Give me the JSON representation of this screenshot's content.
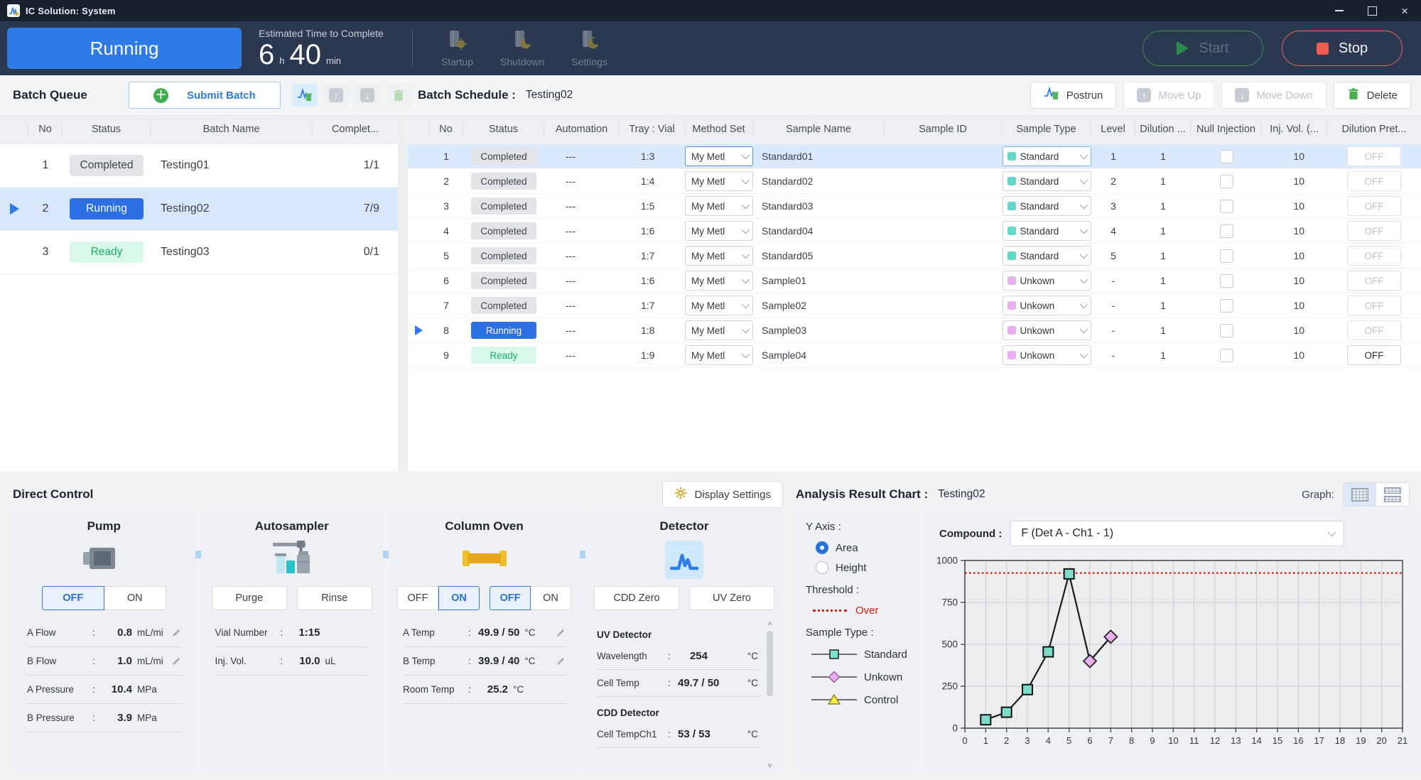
{
  "window": {
    "title": "IC Solution: System",
    "controls": {
      "minimize": "minimize",
      "maximize": "maximize",
      "close": "close"
    }
  },
  "header": {
    "status_label": "Running",
    "eta": {
      "label": "Estimated Time to Complete",
      "hours": "6",
      "hours_unit": "h",
      "minutes": "40",
      "minutes_unit": "min"
    },
    "nav_buttons": [
      {
        "label": "Startup",
        "icon": "startup-sun-icon"
      },
      {
        "label": "Shutdown",
        "icon": "shutdown-moon-icon"
      },
      {
        "label": "Settings",
        "icon": "settings-moon-icon"
      }
    ],
    "start_label": "Start",
    "stop_label": "Stop"
  },
  "batch_queue": {
    "title": "Batch Queue",
    "submit_button": "Submit Batch",
    "columns": [
      "No",
      "Status",
      "Batch Name",
      "Complet..."
    ],
    "rows": [
      {
        "no": "1",
        "status": "Completed",
        "batch_name": "Testing01",
        "completed": "1/1",
        "current": false,
        "selected": false
      },
      {
        "no": "2",
        "status": "Running",
        "batch_name": "Testing02",
        "completed": "7/9",
        "current": true,
        "selected": true
      },
      {
        "no": "3",
        "status": "Ready",
        "batch_name": "Testing03",
        "completed": "0/1",
        "current": false,
        "selected": false
      }
    ]
  },
  "batch_schedule": {
    "title": "Batch Schedule :",
    "schedule_name": "Testing02",
    "toolbar": [
      {
        "label": "Postrun",
        "enabled": true,
        "icon": "postrun-chromatogram-icon"
      },
      {
        "label": "Move Up",
        "enabled": false,
        "icon": "move-up-icon"
      },
      {
        "label": "Move Down",
        "enabled": false,
        "icon": "move-down-icon"
      },
      {
        "label": "Delete",
        "enabled": true,
        "icon": "delete-trash-icon"
      }
    ],
    "columns": [
      "No",
      "Status",
      "Automation",
      "Tray : Vial",
      "Method Set",
      "Sample Name",
      "Sample ID",
      "Sample Type",
      "Level",
      "Dilution ...",
      "Null Injection",
      "Inj. Vol. (...",
      "Dilution Pret..."
    ],
    "rows": [
      {
        "no": "1",
        "status": "Completed",
        "automation": "---",
        "tray_vial": "1:3",
        "method_set": "My Metl",
        "sample_name": "Standard01",
        "sample_id": "",
        "sample_type": "Standard",
        "level": "1",
        "dilution": "1",
        "null_injection": false,
        "inj_vol": "10",
        "dilution_pret": "OFF",
        "current": false,
        "selected": true,
        "pret_enabled": false
      },
      {
        "no": "2",
        "status": "Completed",
        "automation": "---",
        "tray_vial": "1:4",
        "method_set": "My Metl",
        "sample_name": "Standard02",
        "sample_id": "",
        "sample_type": "Standard",
        "level": "2",
        "dilution": "1",
        "null_injection": false,
        "inj_vol": "10",
        "dilution_pret": "OFF",
        "current": false,
        "selected": false,
        "pret_enabled": false
      },
      {
        "no": "3",
        "status": "Completed",
        "automation": "---",
        "tray_vial": "1:5",
        "method_set": "My Metl",
        "sample_name": "Standard03",
        "sample_id": "",
        "sample_type": "Standard",
        "level": "3",
        "dilution": "1",
        "null_injection": false,
        "inj_vol": "10",
        "dilution_pret": "OFF",
        "current": false,
        "selected": false,
        "pret_enabled": false
      },
      {
        "no": "4",
        "status": "Completed",
        "automation": "---",
        "tray_vial": "1:6",
        "method_set": "My Metl",
        "sample_name": "Standard04",
        "sample_id": "",
        "sample_type": "Standard",
        "level": "4",
        "dilution": "1",
        "null_injection": false,
        "inj_vol": "10",
        "dilution_pret": "OFF",
        "current": false,
        "selected": false,
        "pret_enabled": false
      },
      {
        "no": "5",
        "status": "Completed",
        "automation": "---",
        "tray_vial": "1:7",
        "method_set": "My Metl",
        "sample_name": "Standard05",
        "sample_id": "",
        "sample_type": "Standard",
        "level": "5",
        "dilution": "1",
        "null_injection": false,
        "inj_vol": "10",
        "dilution_pret": "OFF",
        "current": false,
        "selected": false,
        "pret_enabled": false
      },
      {
        "no": "6",
        "status": "Completed",
        "automation": "---",
        "tray_vial": "1:6",
        "method_set": "My Metl",
        "sample_name": "Sample01",
        "sample_id": "",
        "sample_type": "Unkown",
        "level": "-",
        "dilution": "1",
        "null_injection": false,
        "inj_vol": "10",
        "dilution_pret": "OFF",
        "current": false,
        "selected": false,
        "pret_enabled": false
      },
      {
        "no": "7",
        "status": "Completed",
        "automation": "---",
        "tray_vial": "1:7",
        "method_set": "My Metl",
        "sample_name": "Sample02",
        "sample_id": "",
        "sample_type": "Unkown",
        "level": "-",
        "dilution": "1",
        "null_injection": false,
        "inj_vol": "10",
        "dilution_pret": "OFF",
        "current": false,
        "selected": false,
        "pret_enabled": false
      },
      {
        "no": "8",
        "status": "Running",
        "automation": "---",
        "tray_vial": "1:8",
        "method_set": "My Metl",
        "sample_name": "Sample03",
        "sample_id": "",
        "sample_type": "Unkown",
        "level": "-",
        "dilution": "1",
        "null_injection": false,
        "inj_vol": "10",
        "dilution_pret": "OFF",
        "current": true,
        "selected": false,
        "pret_enabled": false
      },
      {
        "no": "9",
        "status": "Ready",
        "automation": "---",
        "tray_vial": "1:9",
        "method_set": "My Metl",
        "sample_name": "Sample04",
        "sample_id": "",
        "sample_type": "Unkown",
        "level": "-",
        "dilution": "1",
        "null_injection": false,
        "inj_vol": "10",
        "dilution_pret": "OFF",
        "current": false,
        "selected": false,
        "pret_enabled": true
      }
    ]
  },
  "direct_control": {
    "title": "Direct Control",
    "display_settings_label": "Display Settings",
    "pump": {
      "title": "Pump",
      "toggle": {
        "off": "OFF",
        "on": "ON",
        "active": "OFF"
      },
      "params": [
        {
          "label": "A Flow",
          "value": "0.8",
          "unit": "mL/mi",
          "editable": true
        },
        {
          "label": "B Flow",
          "value": "1.0",
          "unit": "mL/mi",
          "editable": true
        },
        {
          "label": "A Pressure",
          "value": "10.4",
          "unit": "MPa",
          "editable": false
        },
        {
          "label": "B Pressure",
          "value": "3.9",
          "unit": "MPa",
          "editable": false
        }
      ]
    },
    "autosampler": {
      "title": "Autosampler",
      "buttons": [
        "Purge",
        "Rinse"
      ],
      "params": [
        {
          "label": "Vial Number",
          "value": "1:15",
          "unit": "",
          "editable": false
        },
        {
          "label": "Inj. Vol.",
          "value": "10.0",
          "unit": "uL",
          "editable": false
        }
      ]
    },
    "column_oven": {
      "title": "Column Oven",
      "toggle1": {
        "off": "OFF",
        "on": "ON",
        "active": "ON"
      },
      "toggle2": {
        "off": "OFF",
        "on": "ON",
        "active": "OFF"
      },
      "params": [
        {
          "label": "A Temp",
          "value": "49.9 / 50",
          "unit": "°C",
          "editable": true
        },
        {
          "label": "B Temp",
          "value": "39.9 / 40",
          "unit": "°C",
          "editable": true
        },
        {
          "label": "Room Temp",
          "value": "25.2",
          "unit": "°C",
          "editable": false
        }
      ]
    },
    "detector": {
      "title": "Detector",
      "buttons": [
        "CDD Zero",
        "UV Zero"
      ],
      "sections": [
        {
          "heading": "UV Detector",
          "params": [
            {
              "label": "Wavelength",
              "value": "254",
              "unit": "°C"
            },
            {
              "label": "Cell Temp",
              "value": "49.7 / 50",
              "unit": "°C"
            }
          ]
        },
        {
          "heading": "CDD Detector",
          "params": [
            {
              "label": "Cell TempCh1",
              "value": "53 / 53",
              "unit": "°C"
            }
          ]
        }
      ]
    }
  },
  "analysis": {
    "title": "Analysis Result Chart :",
    "result_name": "Testing02",
    "graph_label": "Graph:",
    "y_axis_label": "Y Axis :",
    "y_axis_options": [
      {
        "label": "Area",
        "selected": true
      },
      {
        "label": "Height",
        "selected": false
      }
    ],
    "threshold_label": "Threshold :",
    "threshold_legend": "Over",
    "sample_type_label": "Sample Type :",
    "legend": [
      {
        "label": "Standard",
        "marker": "square",
        "color": "#7edccb"
      },
      {
        "label": "Unkown",
        "marker": "diamond",
        "color": "#eaaff0"
      },
      {
        "label": "Control",
        "marker": "triangle",
        "color": "#f4ed3e"
      }
    ],
    "compound_label": "Compound :",
    "compound_value": "F (Det A - Ch1 - 1)"
  },
  "chart_data": {
    "type": "line",
    "x": [
      1,
      2,
      3,
      4,
      5,
      6,
      7
    ],
    "y": [
      50,
      95,
      230,
      455,
      920,
      400,
      545
    ],
    "point_sample_types": [
      "Standard",
      "Standard",
      "Standard",
      "Standard",
      "Standard",
      "Unkown",
      "Unkown"
    ],
    "threshold_over": 925,
    "xlim": [
      0,
      21
    ],
    "ylim": [
      0,
      1000
    ],
    "xticks": [
      0,
      1,
      2,
      3,
      4,
      5,
      6,
      7,
      8,
      9,
      10,
      11,
      12,
      13,
      14,
      15,
      16,
      17,
      18,
      19,
      20,
      21
    ],
    "yticks": [
      0,
      250,
      500,
      750,
      1000
    ],
    "grid": true,
    "legend_position": "left-panel",
    "line_color": "#1a1a1a",
    "threshold_color": "#d21f12",
    "marker_colors": {
      "Standard": "#7edccb",
      "Unkown": "#eaaff0",
      "Control": "#f4ed3e"
    }
  }
}
